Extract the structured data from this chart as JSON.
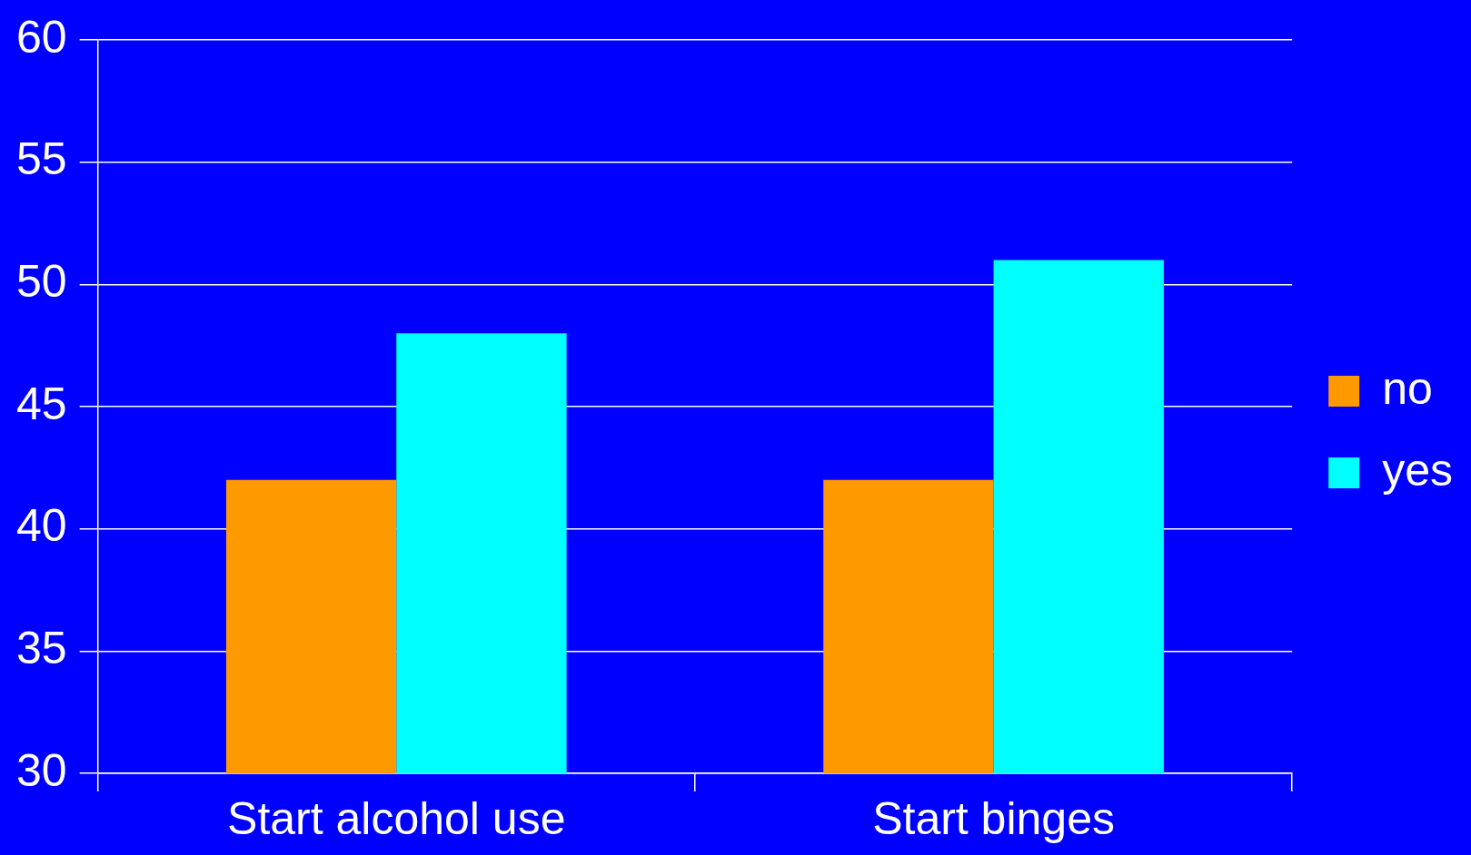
{
  "chart_data": {
    "type": "bar",
    "categories": [
      "Start alcohol use",
      "Start binges"
    ],
    "series": [
      {
        "name": "no",
        "color": "#ff9900",
        "values": [
          42,
          42
        ]
      },
      {
        "name": "yes",
        "color": "#00ffff",
        "values": [
          48,
          51
        ]
      }
    ],
    "ylim": [
      30,
      60
    ],
    "yticks": [
      30,
      35,
      40,
      45,
      50,
      55,
      60
    ],
    "grid": "y",
    "legend": "right"
  }
}
